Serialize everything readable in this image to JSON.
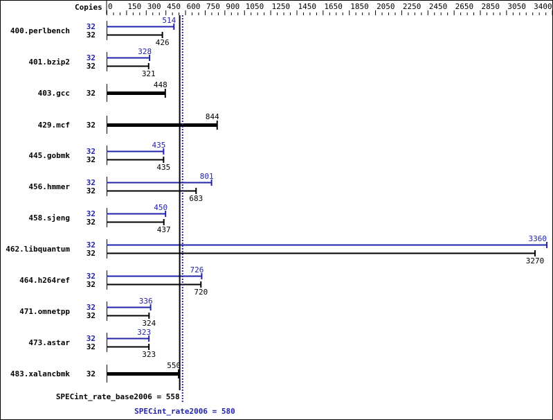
{
  "chart_data": {
    "type": "bar",
    "orientation": "horizontal",
    "copies_label": "Copies",
    "xlim": [
      0,
      3400
    ],
    "tick_labels": [
      0,
      150,
      300,
      450,
      600,
      750,
      900,
      1050,
      1250,
      1450,
      1650,
      1850,
      2050,
      2250,
      2450,
      2650,
      2850,
      3050,
      3400
    ],
    "benchmarks": [
      {
        "name": "400.perlbench",
        "peak_copies": "32",
        "peak": 514,
        "base_copies": "32",
        "base": 426
      },
      {
        "name": "401.bzip2",
        "peak_copies": "32",
        "peak": 328,
        "base_copies": "32",
        "base": 321
      },
      {
        "name": "403.gcc",
        "base_copies": "32",
        "base": 448
      },
      {
        "name": "429.mcf",
        "base_copies": "32",
        "base": 844
      },
      {
        "name": "445.gobmk",
        "peak_copies": "32",
        "peak": 435,
        "base_copies": "32",
        "base": 435
      },
      {
        "name": "456.hmmer",
        "peak_copies": "32",
        "peak": 801,
        "base_copies": "32",
        "base": 683
      },
      {
        "name": "458.sjeng",
        "peak_copies": "32",
        "peak": 450,
        "base_copies": "32",
        "base": 437
      },
      {
        "name": "462.libquantum",
        "peak_copies": "32",
        "peak": 3360,
        "base_copies": "32",
        "base": 3270
      },
      {
        "name": "464.h264ref",
        "peak_copies": "32",
        "peak": 726,
        "base_copies": "32",
        "base": 720
      },
      {
        "name": "471.omnetpp",
        "peak_copies": "32",
        "peak": 336,
        "base_copies": "32",
        "base": 324
      },
      {
        "name": "473.astar",
        "peak_copies": "32",
        "peak": 323,
        "base_copies": "32",
        "base": 323
      },
      {
        "name": "483.xalancbmk",
        "base_copies": "32",
        "base": 550
      }
    ],
    "base_reference": {
      "label": "SPECint_rate_base2006 = 558",
      "value": 558
    },
    "peak_reference": {
      "label": "SPECint_rate2006 = 580",
      "value": 580
    },
    "colors": {
      "base": "#000000",
      "peak": "#2222aa"
    }
  }
}
